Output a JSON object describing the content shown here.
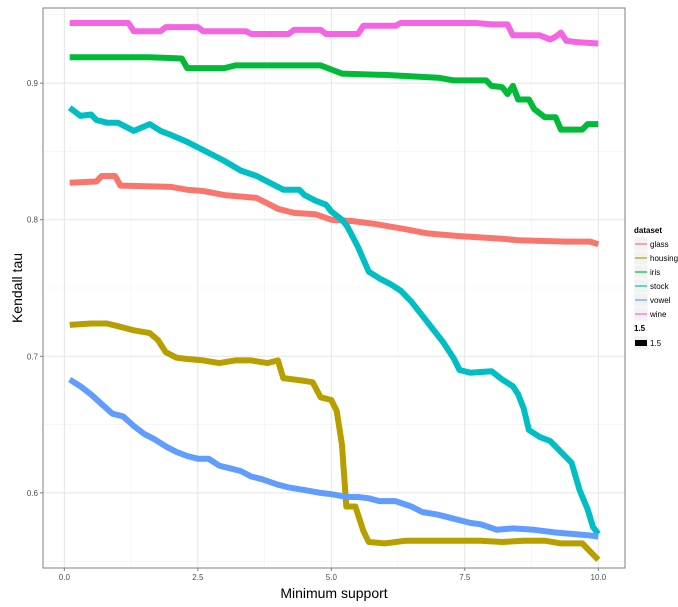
{
  "chart_data": {
    "type": "line",
    "xlabel": "Minimum support",
    "ylabel": "Kendall tau",
    "xlim": [
      -0.4,
      10.5
    ],
    "ylim": [
      0.545,
      0.955
    ],
    "x_ticks": [
      0,
      2.5,
      5,
      7.5,
      10
    ],
    "x_tick_labels": [
      "0.0",
      "2.5",
      "5.0",
      "7.5",
      "10.0"
    ],
    "y_ticks": [
      0.6,
      0.7,
      0.8,
      0.9
    ],
    "y_tick_labels": [
      "0.6",
      "0.7",
      "0.8",
      "0.9"
    ],
    "grid": true,
    "legend": {
      "title": "dataset",
      "placement": "right",
      "size_title": "1.5",
      "size_label": "1.5"
    },
    "series": [
      {
        "name": "glass",
        "color": "#F8766D",
        "points": [
          [
            0.1,
            0.827
          ],
          [
            0.6,
            0.828
          ],
          [
            0.7,
            0.832
          ],
          [
            0.95,
            0.832
          ],
          [
            1.05,
            0.825
          ],
          [
            2.0,
            0.824
          ],
          [
            2.3,
            0.822
          ],
          [
            2.6,
            0.821
          ],
          [
            3.0,
            0.818
          ],
          [
            3.6,
            0.816
          ],
          [
            3.8,
            0.812
          ],
          [
            4.0,
            0.808
          ],
          [
            4.3,
            0.805
          ],
          [
            4.7,
            0.804
          ],
          [
            5.0,
            0.8
          ],
          [
            5.4,
            0.799
          ],
          [
            5.8,
            0.797
          ],
          [
            6.4,
            0.793
          ],
          [
            6.8,
            0.79
          ],
          [
            7.4,
            0.788
          ],
          [
            8.2,
            0.786
          ],
          [
            8.5,
            0.785
          ],
          [
            9.4,
            0.784
          ],
          [
            9.85,
            0.784
          ],
          [
            10.0,
            0.782
          ]
        ]
      },
      {
        "name": "housing",
        "color": "#B79F00",
        "points": [
          [
            0.1,
            0.723
          ],
          [
            0.5,
            0.724
          ],
          [
            0.8,
            0.724
          ],
          [
            1.0,
            0.722
          ],
          [
            1.3,
            0.719
          ],
          [
            1.6,
            0.717
          ],
          [
            1.75,
            0.712
          ],
          [
            1.9,
            0.703
          ],
          [
            2.1,
            0.699
          ],
          [
            2.3,
            0.698
          ],
          [
            2.6,
            0.697
          ],
          [
            2.9,
            0.695
          ],
          [
            3.2,
            0.697
          ],
          [
            3.5,
            0.697
          ],
          [
            3.8,
            0.695
          ],
          [
            4.0,
            0.697
          ],
          [
            4.1,
            0.684
          ],
          [
            4.5,
            0.682
          ],
          [
            4.65,
            0.681
          ],
          [
            4.8,
            0.67
          ],
          [
            5.0,
            0.668
          ],
          [
            5.1,
            0.66
          ],
          [
            5.2,
            0.635
          ],
          [
            5.28,
            0.59
          ],
          [
            5.45,
            0.59
          ],
          [
            5.6,
            0.572
          ],
          [
            5.7,
            0.564
          ],
          [
            6.0,
            0.563
          ],
          [
            6.4,
            0.565
          ],
          [
            7.0,
            0.565
          ],
          [
            7.8,
            0.565
          ],
          [
            8.2,
            0.564
          ],
          [
            8.6,
            0.565
          ],
          [
            9.0,
            0.565
          ],
          [
            9.3,
            0.563
          ],
          [
            9.7,
            0.563
          ],
          [
            9.85,
            0.557
          ],
          [
            10.0,
            0.551
          ]
        ]
      },
      {
        "name": "iris",
        "color": "#00BA38",
        "points": [
          [
            0.1,
            0.919
          ],
          [
            1.6,
            0.919
          ],
          [
            2.2,
            0.918
          ],
          [
            2.3,
            0.911
          ],
          [
            3.0,
            0.911
          ],
          [
            3.2,
            0.913
          ],
          [
            4.8,
            0.913
          ],
          [
            5.0,
            0.91
          ],
          [
            5.2,
            0.907
          ],
          [
            6.0,
            0.906
          ],
          [
            7.0,
            0.904
          ],
          [
            7.3,
            0.902
          ],
          [
            7.9,
            0.902
          ],
          [
            8.0,
            0.898
          ],
          [
            8.2,
            0.897
          ],
          [
            8.3,
            0.892
          ],
          [
            8.4,
            0.898
          ],
          [
            8.5,
            0.888
          ],
          [
            8.7,
            0.888
          ],
          [
            8.8,
            0.881
          ],
          [
            9.0,
            0.875
          ],
          [
            9.2,
            0.875
          ],
          [
            9.3,
            0.866
          ],
          [
            9.7,
            0.866
          ],
          [
            9.8,
            0.87
          ],
          [
            10.0,
            0.87
          ]
        ]
      },
      {
        "name": "stock",
        "color": "#00BFC4",
        "points": [
          [
            0.1,
            0.882
          ],
          [
            0.3,
            0.876
          ],
          [
            0.5,
            0.877
          ],
          [
            0.6,
            0.873
          ],
          [
            0.8,
            0.871
          ],
          [
            1.0,
            0.871
          ],
          [
            1.3,
            0.865
          ],
          [
            1.6,
            0.87
          ],
          [
            1.8,
            0.865
          ],
          [
            2.0,
            0.862
          ],
          [
            2.3,
            0.857
          ],
          [
            2.5,
            0.853
          ],
          [
            2.8,
            0.847
          ],
          [
            3.0,
            0.843
          ],
          [
            3.3,
            0.836
          ],
          [
            3.6,
            0.832
          ],
          [
            3.9,
            0.826
          ],
          [
            4.1,
            0.822
          ],
          [
            4.4,
            0.822
          ],
          [
            4.5,
            0.818
          ],
          [
            4.7,
            0.814
          ],
          [
            4.9,
            0.811
          ],
          [
            5.0,
            0.806
          ],
          [
            5.2,
            0.8
          ],
          [
            5.3,
            0.795
          ],
          [
            5.5,
            0.78
          ],
          [
            5.7,
            0.762
          ],
          [
            5.9,
            0.757
          ],
          [
            6.1,
            0.753
          ],
          [
            6.3,
            0.748
          ],
          [
            6.5,
            0.74
          ],
          [
            6.7,
            0.73
          ],
          [
            6.9,
            0.72
          ],
          [
            7.1,
            0.71
          ],
          [
            7.3,
            0.698
          ],
          [
            7.4,
            0.69
          ],
          [
            7.6,
            0.688
          ],
          [
            8.0,
            0.689
          ],
          [
            8.2,
            0.683
          ],
          [
            8.4,
            0.678
          ],
          [
            8.5,
            0.672
          ],
          [
            8.6,
            0.662
          ],
          [
            8.7,
            0.646
          ],
          [
            8.9,
            0.641
          ],
          [
            9.1,
            0.638
          ],
          [
            9.3,
            0.63
          ],
          [
            9.5,
            0.622
          ],
          [
            9.65,
            0.602
          ],
          [
            9.8,
            0.588
          ],
          [
            9.9,
            0.575
          ],
          [
            10.0,
            0.57
          ]
        ]
      },
      {
        "name": "vowel",
        "color": "#619CFF",
        "points": [
          [
            0.1,
            0.683
          ],
          [
            0.3,
            0.678
          ],
          [
            0.5,
            0.672
          ],
          [
            0.7,
            0.665
          ],
          [
            0.9,
            0.658
          ],
          [
            1.1,
            0.656
          ],
          [
            1.3,
            0.649
          ],
          [
            1.5,
            0.643
          ],
          [
            1.7,
            0.639
          ],
          [
            1.9,
            0.634
          ],
          [
            2.1,
            0.63
          ],
          [
            2.3,
            0.627
          ],
          [
            2.5,
            0.625
          ],
          [
            2.7,
            0.625
          ],
          [
            2.9,
            0.62
          ],
          [
            3.1,
            0.618
          ],
          [
            3.3,
            0.616
          ],
          [
            3.5,
            0.612
          ],
          [
            3.7,
            0.61
          ],
          [
            4.0,
            0.606
          ],
          [
            4.2,
            0.604
          ],
          [
            4.5,
            0.602
          ],
          [
            4.8,
            0.6
          ],
          [
            5.0,
            0.599
          ],
          [
            5.3,
            0.597
          ],
          [
            5.5,
            0.597
          ],
          [
            5.7,
            0.596
          ],
          [
            5.9,
            0.594
          ],
          [
            6.2,
            0.594
          ],
          [
            6.5,
            0.59
          ],
          [
            6.7,
            0.586
          ],
          [
            7.0,
            0.584
          ],
          [
            7.3,
            0.581
          ],
          [
            7.6,
            0.578
          ],
          [
            7.8,
            0.577
          ],
          [
            8.1,
            0.573
          ],
          [
            8.4,
            0.574
          ],
          [
            8.8,
            0.573
          ],
          [
            9.2,
            0.571
          ],
          [
            9.5,
            0.57
          ],
          [
            9.8,
            0.569
          ],
          [
            10.0,
            0.568
          ]
        ]
      },
      {
        "name": "wine",
        "color": "#F564E3",
        "points": [
          [
            0.1,
            0.944
          ],
          [
            1.2,
            0.944
          ],
          [
            1.3,
            0.938
          ],
          [
            1.8,
            0.938
          ],
          [
            1.9,
            0.941
          ],
          [
            2.5,
            0.941
          ],
          [
            2.6,
            0.938
          ],
          [
            3.4,
            0.938
          ],
          [
            3.5,
            0.936
          ],
          [
            4.2,
            0.936
          ],
          [
            4.3,
            0.939
          ],
          [
            4.8,
            0.939
          ],
          [
            4.9,
            0.936
          ],
          [
            5.5,
            0.936
          ],
          [
            5.6,
            0.942
          ],
          [
            6.2,
            0.942
          ],
          [
            6.3,
            0.944
          ],
          [
            7.7,
            0.944
          ],
          [
            8.0,
            0.943
          ],
          [
            8.3,
            0.943
          ],
          [
            8.4,
            0.935
          ],
          [
            8.9,
            0.935
          ],
          [
            9.1,
            0.932
          ],
          [
            9.2,
            0.934
          ],
          [
            9.3,
            0.937
          ],
          [
            9.4,
            0.931
          ],
          [
            9.6,
            0.93
          ],
          [
            10.0,
            0.929
          ]
        ]
      }
    ]
  }
}
